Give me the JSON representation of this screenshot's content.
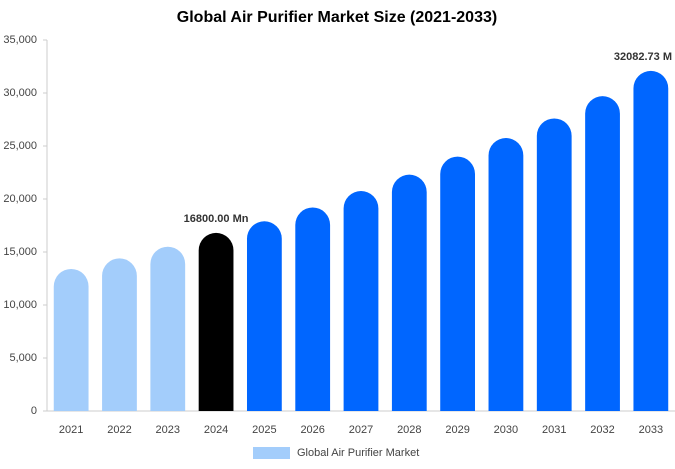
{
  "chart_data": {
    "type": "bar",
    "title": "Global Air Purifier Market Size (2021-2033)",
    "categories": [
      "2021",
      "2022",
      "2023",
      "2024",
      "2025",
      "2026",
      "2027",
      "2028",
      "2029",
      "2030",
      "2031",
      "2032",
      "2033"
    ],
    "series": [
      {
        "name": "Global Air Purifier Market",
        "color": "#a3cdfb",
        "values": [
          13400,
          14400,
          15500,
          16800,
          17900,
          19200,
          20750,
          22300,
          24000,
          25750,
          27600,
          29700,
          32082.73
        ],
        "value_labels": [
          null,
          null,
          null,
          "16800.00 Mn",
          null,
          null,
          null,
          null,
          null,
          null,
          null,
          null,
          "32082.73 M"
        ],
        "colors": [
          "#a3cdfb",
          "#a3cdfb",
          "#a3cdfb",
          "#000000",
          "#0066ff",
          "#0066ff",
          "#0066ff",
          "#0066ff",
          "#0066ff",
          "#0066ff",
          "#0066ff",
          "#0066ff",
          "#0066ff"
        ]
      }
    ],
    "ylim": [
      0,
      35000
    ],
    "yticks": [
      0,
      {
        "value": 5000,
        "label": "5,000"
      },
      {
        "value": 10000,
        "label": "10,000"
      },
      {
        "value": 15000,
        "label": "15,000"
      },
      {
        "value": 20000,
        "label": "20,000"
      },
      {
        "value": 25000,
        "label": "25,000"
      },
      {
        "value": 30000,
        "label": "30,000"
      },
      {
        "value": 35000,
        "label": "35,000"
      }
    ],
    "grid": false,
    "legend": "bottom"
  }
}
